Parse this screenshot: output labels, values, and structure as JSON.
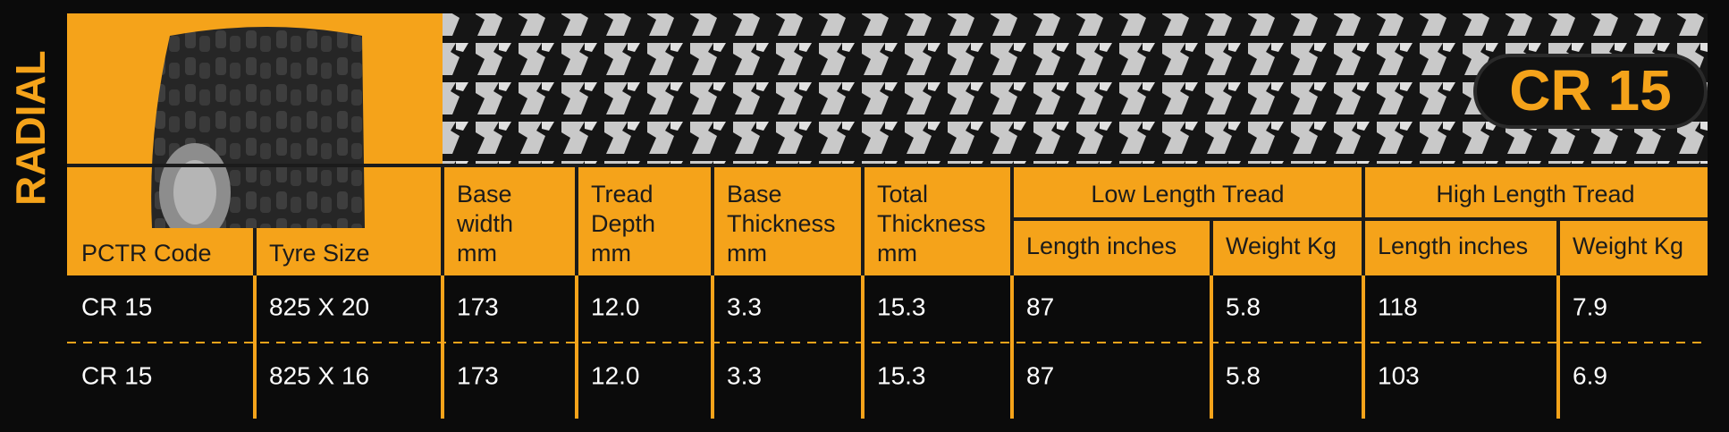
{
  "brand": "RADIAL",
  "badge": "CR 15",
  "table": {
    "columns": [
      {
        "lines": [
          "PCTR Code"
        ]
      },
      {
        "lines": [
          "Tyre Size"
        ]
      },
      {
        "lines": [
          "Base",
          "width",
          "mm"
        ]
      },
      {
        "lines": [
          "Tread",
          "Depth",
          "mm"
        ]
      },
      {
        "lines": [
          "Base",
          "Thickness",
          "mm"
        ]
      },
      {
        "lines": [
          "Total",
          "Thickness",
          "mm"
        ]
      }
    ],
    "groups": [
      {
        "label": "Low Length Tread",
        "sub": [
          "Length inches",
          "Weight Kg"
        ]
      },
      {
        "label": "High Length Tread",
        "sub": [
          "Length inches",
          "Weight Kg"
        ]
      }
    ],
    "rows": [
      [
        "CR 15",
        "825 X 20",
        "173",
        "12.0",
        "3.3",
        "15.3",
        "87",
        "5.8",
        "118",
        "7.9"
      ],
      [
        "CR 15",
        "825 X 16",
        "173",
        "12.0",
        "3.3",
        "15.3",
        "87",
        "5.8",
        "103",
        "6.9"
      ]
    ]
  }
}
